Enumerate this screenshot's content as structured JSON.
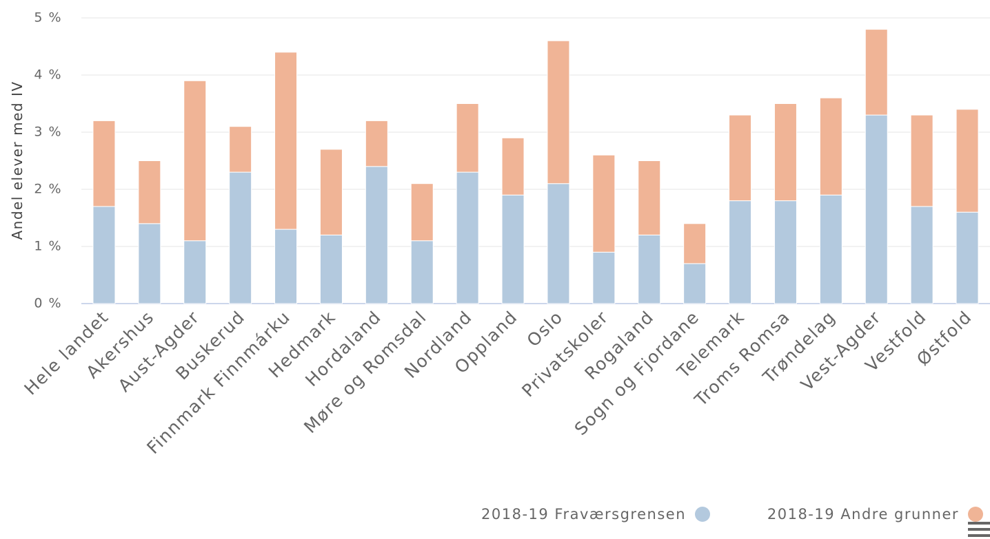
{
  "chart_data": {
    "type": "stacked_bar",
    "y_axis_label": "Andel elever med IV",
    "categories": [
      "Hele landet",
      "Akershus",
      "Aust-Agder",
      "Buskerud",
      "Finnmark Finnmárku",
      "Hedmark",
      "Hordaland",
      "Møre og Romsdal",
      "Nordland",
      "Oppland",
      "Oslo",
      "Privatskoler",
      "Rogaland",
      "Sogn og Fjordane",
      "Telemark",
      "Troms Romsa",
      "Trøndelag",
      "Vest-Agder",
      "Vestfold",
      "Østfold"
    ],
    "series": [
      {
        "name": "2018-19 Fraværsgrensen",
        "color": "#b3c9de",
        "values": [
          1.7,
          1.4,
          1.1,
          2.3,
          1.3,
          1.2,
          2.4,
          1.1,
          2.3,
          1.9,
          2.1,
          0.9,
          1.2,
          0.7,
          1.8,
          1.8,
          1.9,
          3.3,
          1.7,
          1.6
        ]
      },
      {
        "name": "2018-19 Andre grunner",
        "color": "#f0b496",
        "values": [
          1.5,
          1.1,
          2.8,
          0.8,
          3.1,
          1.5,
          0.8,
          1.0,
          1.2,
          1.0,
          2.5,
          1.7,
          1.3,
          0.7,
          1.5,
          1.7,
          1.7,
          1.5,
          1.6,
          1.8
        ]
      }
    ],
    "ylim": [
      0,
      5
    ],
    "yticks": [
      {
        "value": 0,
        "label": "0 %"
      },
      {
        "value": 1,
        "label": "1 %"
      },
      {
        "value": 2,
        "label": "2 %"
      },
      {
        "value": 3,
        "label": "3 %"
      },
      {
        "value": 4,
        "label": "4 %"
      },
      {
        "value": 5,
        "label": "5 %"
      }
    ],
    "grid": true
  }
}
